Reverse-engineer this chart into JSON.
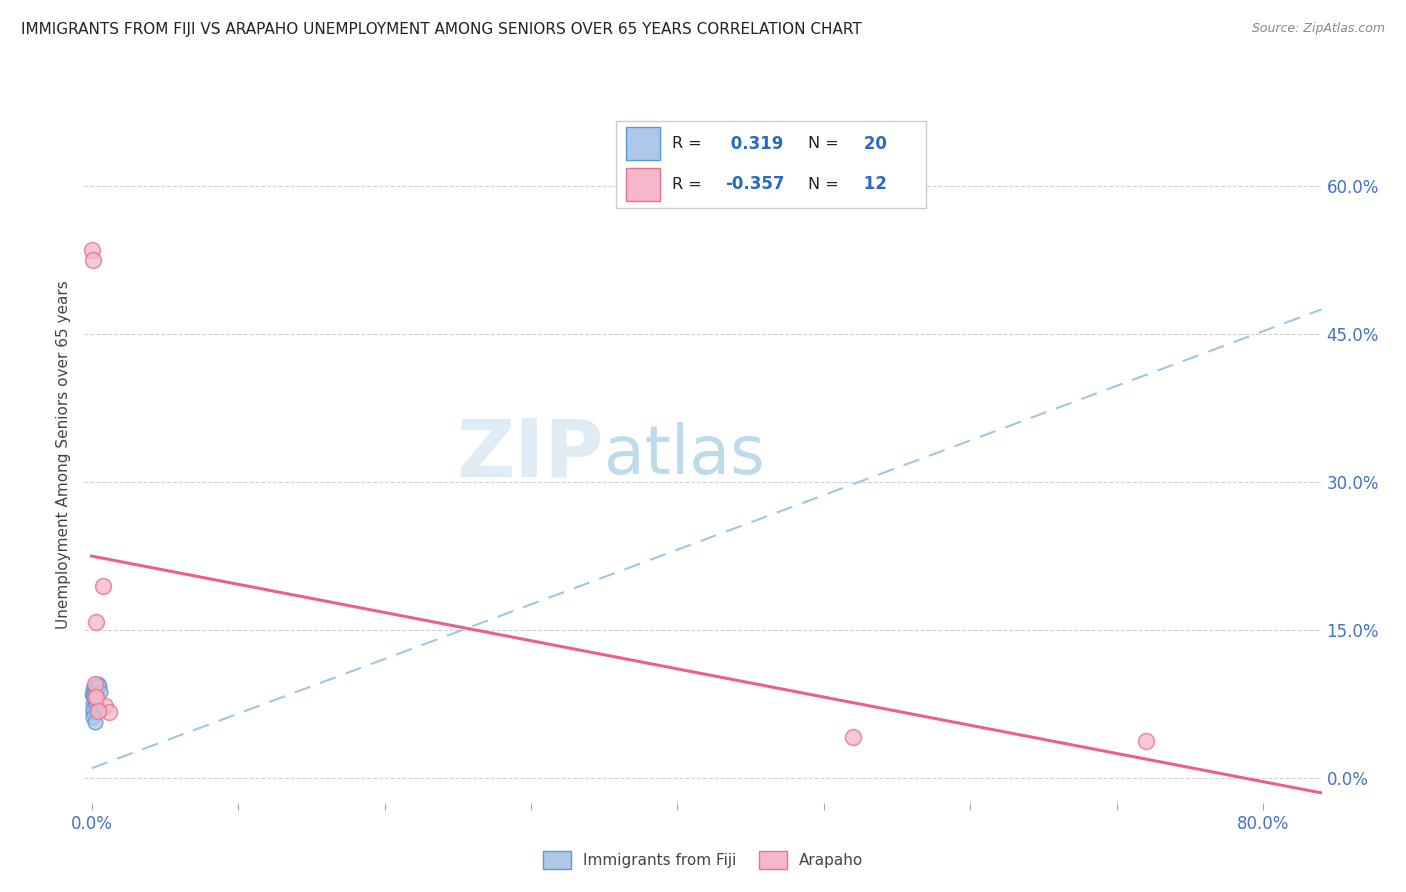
{
  "title": "IMMIGRANTS FROM FIJI VS ARAPAHO UNEMPLOYMENT AMONG SENIORS OVER 65 YEARS CORRELATION CHART",
  "source": "Source: ZipAtlas.com",
  "ylabel_label": "Unemployment Among Seniors over 65 years",
  "xlim": [
    -0.005,
    0.84
  ],
  "ylim": [
    -0.025,
    0.68
  ],
  "ytick_vals": [
    0.0,
    0.15,
    0.3,
    0.45,
    0.6
  ],
  "xtick_vals": [
    0.0,
    0.1,
    0.2,
    0.3,
    0.4,
    0.5,
    0.6,
    0.7,
    0.8
  ],
  "fiji_R": 0.319,
  "fiji_N": 20,
  "arapaho_R": -0.357,
  "arapaho_N": 12,
  "fiji_color": "#adc8e8",
  "fiji_edge_color": "#5b9bd5",
  "arapaho_color": "#f5b8ca",
  "arapaho_edge_color": "#e87090",
  "fiji_trend_color": "#90bedd",
  "arapaho_trend_color": "#e8507a",
  "watermark_zip": "ZIP",
  "watermark_atlas": "atlas",
  "fiji_x": [
    0.0005,
    0.001,
    0.0015,
    0.001,
    0.002,
    0.003,
    0.001,
    0.002,
    0.002,
    0.004,
    0.001,
    0.002,
    0.001,
    0.002,
    0.002,
    0.003,
    0.001,
    0.005,
    0.006,
    0.002
  ],
  "fiji_y": [
    0.085,
    0.09,
    0.092,
    0.075,
    0.088,
    0.09,
    0.083,
    0.08,
    0.087,
    0.095,
    0.067,
    0.074,
    0.07,
    0.082,
    0.08,
    0.075,
    0.062,
    0.093,
    0.087,
    0.057
  ],
  "arapaho_x": [
    0.0005,
    0.001,
    0.002,
    0.002,
    0.008,
    0.009,
    0.012,
    0.52,
    0.72,
    0.003,
    0.003,
    0.004
  ],
  "arapaho_y": [
    0.535,
    0.525,
    0.082,
    0.095,
    0.195,
    0.073,
    0.067,
    0.042,
    0.038,
    0.158,
    0.082,
    0.068
  ],
  "fiji_trend_x0": 0.0,
  "fiji_trend_y0": 0.01,
  "fiji_trend_x1": 0.84,
  "fiji_trend_y1": 0.475,
  "arapaho_trend_x0": 0.0,
  "arapaho_trend_y0": 0.225,
  "arapaho_trend_x1": 0.84,
  "arapaho_trend_y1": -0.015,
  "fiji_marker_size": 110,
  "arapaho_marker_size": 130
}
